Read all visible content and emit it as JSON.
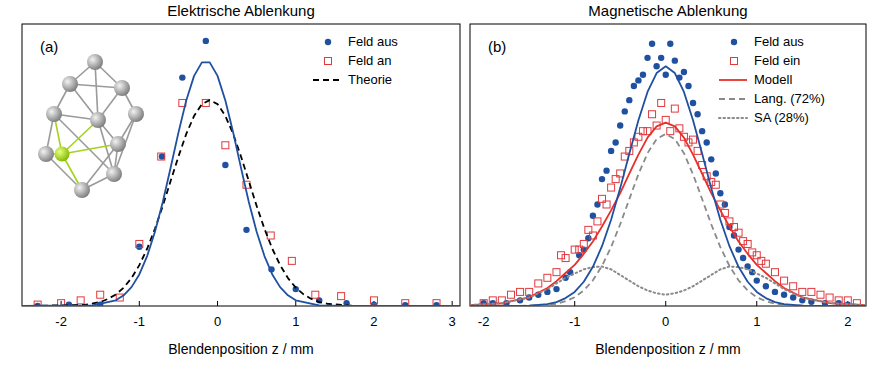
{
  "chart_data": [
    {
      "type": "scatter",
      "title": "Elektrische Ablenkung",
      "x_label": "Blendenposition z / mm",
      "annotations": [
        "(a)"
      ],
      "xlim": [
        -2.5,
        3.1
      ],
      "xticks": [
        -2,
        -1,
        0,
        1,
        2,
        3
      ],
      "ylim": [
        0,
        1
      ],
      "tick_labels": "x",
      "grid": false,
      "legend": "upper right",
      "series": [
        {
          "name": "Feld aus",
          "color": "#2050a0",
          "type": "scatter",
          "marker": "filled_circle",
          "x": [
            -2.3,
            -1.9,
            -1.5,
            -1.0,
            -0.71,
            -0.45,
            -0.15,
            0.1,
            0.37,
            0.69,
            1.0,
            1.3,
            1.65,
            2.0,
            2.4,
            2.8
          ],
          "values": [
            0.0,
            0.005,
            0.005,
            0.21,
            0.53,
            0.81,
            0.94,
            0.5,
            0.27,
            0.13,
            0.06,
            0.02,
            0.01,
            0.005,
            0.003,
            0.003
          ]
        },
        {
          "name": "Feld an",
          "color": "#e0393e",
          "type": "scatter",
          "marker": "open_square",
          "x": [
            -2.3,
            -2.0,
            -1.75,
            -1.5,
            -1.25,
            -1.0,
            -0.72,
            -0.45,
            -0.15,
            0.1,
            0.37,
            0.68,
            0.95,
            1.25,
            1.58,
            2.0,
            2.4,
            2.8
          ],
          "values": [
            0.005,
            0.01,
            0.02,
            0.04,
            0.03,
            0.22,
            0.53,
            0.72,
            0.72,
            0.57,
            0.43,
            0.25,
            0.16,
            0.04,
            0.035,
            0.02,
            0.01,
            0.01
          ]
        },
        {
          "name": "Theorie",
          "color": "#000000",
          "type": "line",
          "line_style": "dashed",
          "x": [
            -2.5,
            -1.7,
            -1.5,
            -1.4,
            -1.3,
            -1.2,
            -1.1,
            -1.0,
            -0.9,
            -0.8,
            -0.7,
            -0.6,
            -0.5,
            -0.4,
            -0.3,
            -0.2,
            -0.1,
            0,
            0.1,
            0.2,
            0.3,
            0.4,
            0.5,
            0.6,
            0.7,
            0.8,
            0.9,
            1.0,
            1.1,
            1.2,
            1.3,
            1.4,
            1.7,
            2.0,
            3.1
          ],
          "values": [
            0,
            0.004,
            0.014,
            0.025,
            0.041,
            0.065,
            0.099,
            0.145,
            0.203,
            0.274,
            0.355,
            0.443,
            0.53,
            0.61,
            0.674,
            0.716,
            0.73,
            0.716,
            0.674,
            0.61,
            0.53,
            0.443,
            0.355,
            0.274,
            0.203,
            0.145,
            0.099,
            0.065,
            0.041,
            0.025,
            0.014,
            0.008,
            0.001,
            0,
            0
          ]
        },
        {
          "color": "#2050a0",
          "type": "line",
          "line_style": "solid",
          "x": [
            -2.5,
            -1.6,
            -1.3,
            -1.2,
            -1.1,
            -1.0,
            -0.9,
            -0.8,
            -0.7,
            -0.6,
            -0.5,
            -0.4,
            -0.3,
            -0.2,
            -0.1,
            0,
            0.1,
            0.2,
            0.3,
            0.4,
            0.5,
            0.6,
            0.7,
            0.8,
            0.9,
            1.0,
            1.3,
            1.6,
            3.1
          ],
          "values": [
            0,
            0.002,
            0.02,
            0.038,
            0.067,
            0.112,
            0.177,
            0.263,
            0.369,
            0.49,
            0.615,
            0.729,
            0.816,
            0.864,
            0.864,
            0.816,
            0.729,
            0.615,
            0.49,
            0.369,
            0.263,
            0.177,
            0.112,
            0.067,
            0.038,
            0.02,
            0.002,
            0,
            0
          ]
        }
      ]
    },
    {
      "type": "scatter",
      "title": "Magnetische Ablenkung",
      "x_label": "Blendenposition z / mm",
      "annotations": [
        "(b)"
      ],
      "xlim": [
        -2.15,
        2.2
      ],
      "xticks": [
        -2,
        -1,
        0,
        1,
        2
      ],
      "ylim": [
        0,
        1
      ],
      "tick_labels": "x",
      "grid": false,
      "legend": "upper right",
      "series": [
        {
          "name": "Feld aus",
          "color": "#2050a0",
          "type": "scatter",
          "marker": "filled_circle",
          "x": [
            -2.0,
            -1.9,
            -1.75,
            -1.6,
            -1.5,
            -1.4,
            -1.3,
            -1.2,
            -1.1,
            -1.05,
            -0.95,
            -0.9,
            -0.85,
            -0.8,
            -0.75,
            -0.7,
            -0.65,
            -0.6,
            -0.55,
            -0.5,
            -0.45,
            -0.4,
            -0.35,
            -0.3,
            -0.25,
            -0.2,
            -0.15,
            -0.1,
            -0.05,
            0,
            0.05,
            0.1,
            0.15,
            0.2,
            0.25,
            0.3,
            0.35,
            0.4,
            0.45,
            0.5,
            0.55,
            0.6,
            0.65,
            0.7,
            0.75,
            0.8,
            0.85,
            0.9,
            0.95,
            1.0,
            1.1,
            1.2,
            1.3,
            1.4,
            1.5,
            1.6,
            1.75,
            1.9,
            2.0
          ],
          "values": [
            0.01,
            0.01,
            0.01,
            0.02,
            0.03,
            0.04,
            0.05,
            0.06,
            0.1,
            0.12,
            0.18,
            0.2,
            0.24,
            0.32,
            0.36,
            0.45,
            0.48,
            0.55,
            0.58,
            0.64,
            0.69,
            0.73,
            0.78,
            0.8,
            0.82,
            0.88,
            0.93,
            0.85,
            0.88,
            0.82,
            0.93,
            0.87,
            0.81,
            0.83,
            0.78,
            0.72,
            0.68,
            0.62,
            0.58,
            0.52,
            0.47,
            0.4,
            0.36,
            0.28,
            0.25,
            0.2,
            0.17,
            0.14,
            0.12,
            0.09,
            0.07,
            0.05,
            0.04,
            0.03,
            0.02,
            0.015,
            0.01,
            0.01,
            0.005
          ]
        },
        {
          "name": "Feld ein",
          "color": "#e0393e",
          "type": "scatter",
          "marker": "open_square",
          "x": [
            -2.0,
            -1.9,
            -1.8,
            -1.7,
            -1.6,
            -1.5,
            -1.4,
            -1.3,
            -1.2,
            -1.15,
            -1.1,
            -1.0,
            -0.95,
            -0.9,
            -0.85,
            -0.8,
            -0.75,
            -0.7,
            -0.65,
            -0.6,
            -0.55,
            -0.5,
            -0.45,
            -0.4,
            -0.35,
            -0.3,
            -0.25,
            -0.2,
            -0.15,
            -0.1,
            -0.05,
            0,
            0.05,
            0.1,
            0.15,
            0.2,
            0.25,
            0.3,
            0.35,
            0.4,
            0.45,
            0.5,
            0.55,
            0.6,
            0.65,
            0.7,
            0.75,
            0.8,
            0.85,
            0.9,
            0.95,
            1.0,
            1.05,
            1.1,
            1.2,
            1.3,
            1.4,
            1.5,
            1.6,
            1.7,
            1.8,
            1.9,
            2.0,
            2.1
          ],
          "values": [
            0.01,
            0.02,
            0.02,
            0.04,
            0.05,
            0.05,
            0.08,
            0.1,
            0.12,
            0.18,
            0.17,
            0.2,
            0.2,
            0.22,
            0.27,
            0.25,
            0.3,
            0.38,
            0.36,
            0.42,
            0.45,
            0.47,
            0.53,
            0.55,
            0.58,
            0.6,
            0.62,
            0.62,
            0.68,
            0.64,
            0.72,
            0.66,
            0.62,
            0.7,
            0.63,
            0.6,
            0.58,
            0.59,
            0.55,
            0.5,
            0.46,
            0.44,
            0.43,
            0.36,
            0.33,
            0.3,
            0.28,
            0.26,
            0.23,
            0.22,
            0.19,
            0.18,
            0.16,
            0.15,
            0.12,
            0.09,
            0.07,
            0.05,
            0.05,
            0.04,
            0.03,
            0.02,
            0.02,
            0.01
          ]
        },
        {
          "name": "Modell",
          "color": "#e8302a",
          "type": "line",
          "line_style": "solid",
          "x": [
            -2.15,
            -1.8,
            -1.5,
            -1.3,
            -1.2,
            -1.1,
            -1.0,
            -0.9,
            -0.8,
            -0.7,
            -0.6,
            -0.5,
            -0.4,
            -0.3,
            -0.2,
            -0.1,
            0,
            0.1,
            0.2,
            0.3,
            0.4,
            0.5,
            0.6,
            0.7,
            0.8,
            0.9,
            1.0,
            1.1,
            1.2,
            1.3,
            1.5,
            1.8,
            2.2
          ],
          "values": [
            0.003,
            0.01,
            0.031,
            0.064,
            0.088,
            0.117,
            0.146,
            0.185,
            0.229,
            0.282,
            0.339,
            0.4,
            0.469,
            0.537,
            0.597,
            0.637,
            0.65,
            0.637,
            0.597,
            0.537,
            0.469,
            0.4,
            0.339,
            0.282,
            0.229,
            0.185,
            0.146,
            0.117,
            0.088,
            0.064,
            0.031,
            0.01,
            0.003
          ]
        },
        {
          "name": "Lang. (72%)",
          "color": "#8a8a8a",
          "type": "line",
          "line_style": "dashed",
          "x": [
            -2.15,
            -1.8,
            -1.5,
            -1.3,
            -1.2,
            -1.1,
            -1.0,
            -0.9,
            -0.8,
            -0.7,
            -0.6,
            -0.5,
            -0.4,
            -0.3,
            -0.2,
            -0.1,
            0,
            0.1,
            0.2,
            0.3,
            0.4,
            0.5,
            0.6,
            0.7,
            0.8,
            0.9,
            1.0,
            1.1,
            1.2,
            1.3,
            1.5,
            1.8,
            2.2
          ],
          "values": [
            0,
            0,
            0.001,
            0.004,
            0.008,
            0.017,
            0.031,
            0.055,
            0.091,
            0.142,
            0.209,
            0.29,
            0.379,
            0.467,
            0.542,
            0.592,
            0.61,
            0.592,
            0.542,
            0.467,
            0.379,
            0.29,
            0.209,
            0.142,
            0.091,
            0.055,
            0.031,
            0.017,
            0.008,
            0.004,
            0.001,
            0,
            0
          ]
        },
        {
          "name": "SA (28%)",
          "color": "#8a8a8a",
          "type": "line",
          "line_style": "dotted",
          "x": [
            -2.15,
            -1.8,
            -1.5,
            -1.3,
            -1.2,
            -1.1,
            -1.0,
            -0.9,
            -0.8,
            -0.7,
            -0.6,
            -0.5,
            -0.4,
            -0.3,
            -0.2,
            -0.1,
            0,
            0.1,
            0.2,
            0.3,
            0.4,
            0.5,
            0.6,
            0.7,
            0.8,
            0.9,
            1.0,
            1.1,
            1.2,
            1.3,
            1.5,
            1.8,
            2.2
          ],
          "values": [
            0.003,
            0.01,
            0.03,
            0.06,
            0.08,
            0.1,
            0.115,
            0.13,
            0.138,
            0.14,
            0.13,
            0.11,
            0.09,
            0.07,
            0.055,
            0.045,
            0.04,
            0.045,
            0.055,
            0.07,
            0.09,
            0.11,
            0.13,
            0.14,
            0.138,
            0.13,
            0.115,
            0.1,
            0.08,
            0.06,
            0.03,
            0.01,
            0.003
          ]
        },
        {
          "color": "#2050a0",
          "type": "line",
          "line_style": "solid",
          "x": [
            -2.15,
            -1.8,
            -1.5,
            -1.3,
            -1.2,
            -1.1,
            -1.0,
            -0.9,
            -0.8,
            -0.7,
            -0.6,
            -0.5,
            -0.4,
            -0.3,
            -0.2,
            -0.1,
            0,
            0.1,
            0.2,
            0.3,
            0.4,
            0.5,
            0.6,
            0.7,
            0.8,
            0.9,
            1.0,
            1.1,
            1.2,
            1.3,
            1.5,
            1.8,
            2.2
          ],
          "values": [
            0,
            0,
            0.001,
            0.007,
            0.014,
            0.028,
            0.05,
            0.086,
            0.139,
            0.212,
            0.306,
            0.418,
            0.54,
            0.659,
            0.759,
            0.826,
            0.85,
            0.826,
            0.759,
            0.659,
            0.54,
            0.418,
            0.306,
            0.212,
            0.139,
            0.086,
            0.05,
            0.028,
            0.014,
            0.007,
            0.001,
            0,
            0
          ]
        }
      ]
    }
  ]
}
